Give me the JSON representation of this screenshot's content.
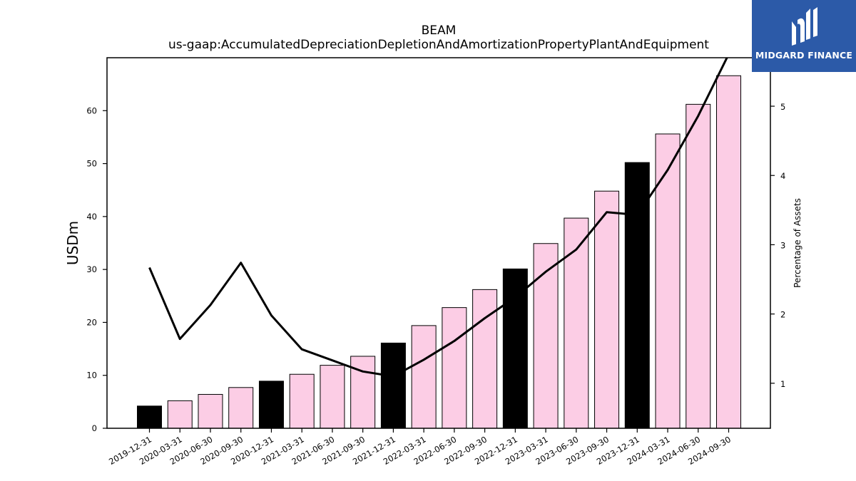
{
  "logo": {
    "text": "MIDGARD FINANCE",
    "icon": "midgard-logo-icon",
    "color": "#2c5aa8"
  },
  "chart_data": {
    "type": "bar",
    "title": "BEAM",
    "subtitle": "us-gaap:AccumulatedDepreciationDepletionAndAmortizationPropertyPlantAndEquipment",
    "xlabel": "",
    "ylabel": "USDm",
    "y2label": "Percentage of Assets",
    "ylim": [
      0,
      70
    ],
    "y2lim": [
      0.35,
      5.7
    ],
    "yticks": [
      0,
      10,
      20,
      30,
      40,
      50,
      60
    ],
    "y2ticks": [
      1,
      2,
      3,
      4,
      5
    ],
    "categories": [
      "2019-12-31",
      "2020-03-31",
      "2020-06-30",
      "2020-09-30",
      "2020-12-31",
      "2021-03-31",
      "2021-06-30",
      "2021-09-30",
      "2021-12-31",
      "2022-03-31",
      "2022-06-30",
      "2022-09-30",
      "2022-12-31",
      "2023-03-31",
      "2023-06-30",
      "2023-09-30",
      "2023-12-31",
      "2024-03-31",
      "2024-06-30",
      "2024-09-30"
    ],
    "series": [
      {
        "kind": "bar",
        "values": [
          4.2,
          5.2,
          6.4,
          7.7,
          8.9,
          10.2,
          11.9,
          13.6,
          16.1,
          19.4,
          22.8,
          26.2,
          30.1,
          34.9,
          39.7,
          44.8,
          50.2,
          55.6,
          61.2,
          66.6
        ],
        "highlight_color": "#000000",
        "base_color": "#fccde5",
        "highlight_indices": [
          0,
          4,
          8,
          12,
          16
        ]
      },
      {
        "kind": "line",
        "axis": "right",
        "color": "#000000",
        "values": [
          2.67,
          1.64,
          2.13,
          2.74,
          1.98,
          1.49,
          1.33,
          1.17,
          1.1,
          1.34,
          1.61,
          1.94,
          2.24,
          2.61,
          2.93,
          3.47,
          3.43,
          4.08,
          4.86,
          5.75
        ]
      }
    ],
    "grid": false
  }
}
